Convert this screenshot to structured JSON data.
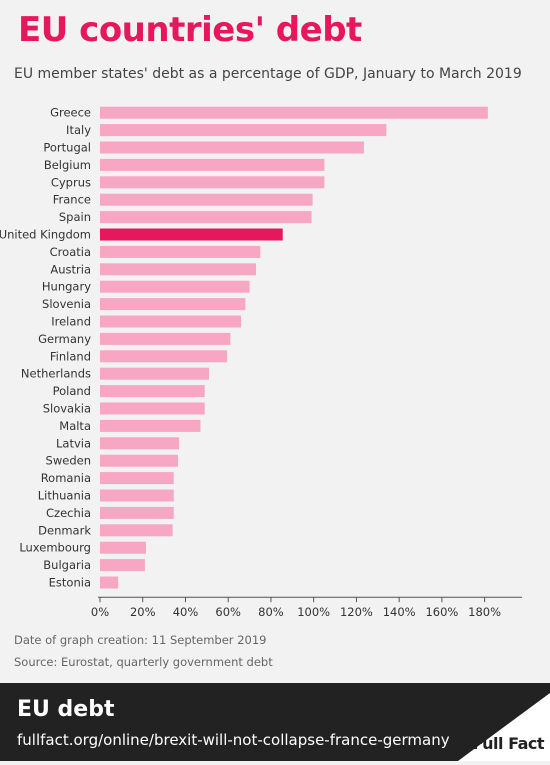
{
  "header": {
    "title": "EU countries' debt",
    "subtitle": "EU member states' debt as a percentage of GDP, January to March 2019"
  },
  "chart_data": {
    "type": "bar",
    "orientation": "horizontal",
    "categories": [
      "Greece",
      "Italy",
      "Portugal",
      "Belgium",
      "Cyprus",
      "France",
      "Spain",
      "United Kingdom",
      "Croatia",
      "Austria",
      "Hungary",
      "Slovenia",
      "Ireland",
      "Germany",
      "Finland",
      "Netherlands",
      "Poland",
      "Slovakia",
      "Malta",
      "Latvia",
      "Sweden",
      "Romania",
      "Lithuania",
      "Czechia",
      "Denmark",
      "Luxembourg",
      "Bulgaria",
      "Estonia"
    ],
    "values": [
      181.5,
      134,
      123.5,
      105,
      105,
      99.5,
      99,
      85.5,
      75,
      73,
      70,
      68,
      66,
      61,
      59.5,
      51,
      49,
      49,
      47,
      37,
      36.5,
      34.5,
      34.5,
      34.5,
      34,
      21.5,
      21,
      8.5
    ],
    "highlight": "United Kingdom",
    "xlim": [
      0,
      190
    ],
    "xticks": [
      0,
      20,
      40,
      60,
      80,
      100,
      120,
      140,
      160,
      180
    ],
    "tick_labels": [
      "0%",
      "20%",
      "40%",
      "60%",
      "80%",
      "100%",
      "120%",
      "140%",
      "160%",
      "180%"
    ],
    "colors": {
      "bar": "#f7a6c3",
      "highlight": "#e6175c",
      "axis": "#555555",
      "label": "#333333"
    }
  },
  "meta": {
    "created": "Date of graph creation: 11 September 2019",
    "source": "Source: Eurostat, quarterly government debt"
  },
  "footer": {
    "title": "EU debt",
    "url": "fullfact.org/online/brexit-will-not-collapse-france-germany",
    "logo_text": "Full Fact"
  }
}
